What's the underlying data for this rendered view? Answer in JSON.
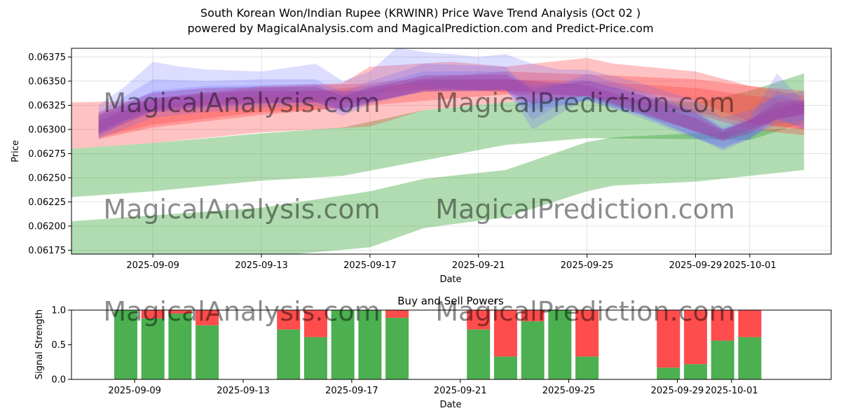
{
  "page": {
    "title_line1": "South Korean Won/Indian Rupee (KRWINR) Price Wave Trend Analysis (Oct 02 )",
    "title_line2": "powered by MagicalAnalysis.com and MagicalPrediction.com and Predict-Price.com",
    "watermark_left": "MagicalAnalysis.com",
    "watermark_right": "MagicalPrediction.com"
  },
  "colors": {
    "green": "#2ca02c",
    "red": "#ff4040",
    "blue": "#6464ff",
    "purple": "#9b3fa3",
    "buy": "#4caf50",
    "sell": "#ff4c4c"
  },
  "chart_data": [
    {
      "type": "area",
      "title": "",
      "xlabel": "Date",
      "ylabel": "Price",
      "xlim": [
        "2025-09-06",
        "2025-10-04"
      ],
      "ylim": [
        0.06171,
        0.06384
      ],
      "x_ticks": [
        "2025-09-09",
        "2025-09-13",
        "2025-09-17",
        "2025-09-21",
        "2025-09-25",
        "2025-09-29",
        "2025-10-01"
      ],
      "y_ticks": [
        0.06175,
        0.062,
        0.06225,
        0.0625,
        0.06275,
        0.063,
        0.06325,
        0.0635,
        0.06375
      ],
      "y_tick_labels": [
        "0.06175",
        "0.06200",
        "0.06225",
        "0.06250",
        "0.06275",
        "0.06300",
        "0.06325",
        "0.06350",
        "0.06375"
      ],
      "grid": true,
      "bands": [
        {
          "name": "green-upper",
          "color": "green",
          "x": [
            "2025-09-06",
            "2025-09-09",
            "2025-09-13",
            "2025-09-16",
            "2025-09-19",
            "2025-09-22",
            "2025-09-25",
            "2025-09-29",
            "2025-10-01",
            "2025-10-03"
          ],
          "upper": [
            0.0628,
            0.06286,
            0.06296,
            0.06302,
            0.0632,
            0.06328,
            0.06335,
            0.06328,
            0.0634,
            0.06358
          ],
          "lower": [
            0.0623,
            0.06236,
            0.06247,
            0.06252,
            0.06268,
            0.06284,
            0.06291,
            0.0629,
            0.06289,
            0.06307
          ]
        },
        {
          "name": "green-lower",
          "color": "green",
          "x": [
            "2025-09-06",
            "2025-09-09",
            "2025-09-13",
            "2025-09-17",
            "2025-09-19",
            "2025-09-22",
            "2025-09-25",
            "2025-09-26",
            "2025-09-29",
            "2025-10-01",
            "2025-10-03"
          ],
          "upper": [
            0.06205,
            0.06211,
            0.06219,
            0.06236,
            0.06249,
            0.06258,
            0.06287,
            0.06292,
            0.06296,
            0.06299,
            0.06302
          ],
          "lower": [
            0.0616,
            0.06165,
            0.06168,
            0.06178,
            0.06198,
            0.06209,
            0.06236,
            0.06242,
            0.06246,
            0.06252,
            0.06258
          ]
        },
        {
          "name": "red-wide",
          "color": "red",
          "x": [
            "2025-09-06",
            "2025-09-09",
            "2025-09-13",
            "2025-09-17",
            "2025-09-19",
            "2025-09-22",
            "2025-09-25",
            "2025-09-29",
            "2025-10-01",
            "2025-10-03"
          ],
          "upper": [
            0.06328,
            0.0633,
            0.06343,
            0.06348,
            0.06353,
            0.0636,
            0.06357,
            0.06352,
            0.06345,
            0.0634
          ],
          "lower": [
            0.0628,
            0.06286,
            0.06297,
            0.06303,
            0.0632,
            0.06328,
            0.06335,
            0.06316,
            0.063,
            0.06294
          ]
        },
        {
          "name": "red-upper",
          "color": "red",
          "x": [
            "2025-09-07",
            "2025-09-09",
            "2025-09-13",
            "2025-09-16",
            "2025-09-17",
            "2025-09-20",
            "2025-09-22",
            "2025-09-25",
            "2025-09-26",
            "2025-09-29",
            "2025-10-01",
            "2025-10-03"
          ],
          "upper": [
            0.06318,
            0.06332,
            0.06345,
            0.06348,
            0.06365,
            0.0637,
            0.06365,
            0.06374,
            0.06368,
            0.0636,
            0.06345,
            0.06335
          ],
          "lower": [
            0.06292,
            0.06305,
            0.06318,
            0.06322,
            0.06338,
            0.06343,
            0.06338,
            0.06348,
            0.06342,
            0.0633,
            0.06308,
            0.063
          ]
        },
        {
          "name": "orange-mid",
          "color": "red",
          "x": [
            "2025-09-07",
            "2025-09-09",
            "2025-09-13",
            "2025-09-17",
            "2025-09-20",
            "2025-09-22",
            "2025-09-25",
            "2025-09-29",
            "2025-10-01",
            "2025-10-03"
          ],
          "upper": [
            0.06315,
            0.06325,
            0.06336,
            0.06345,
            0.0635,
            0.06352,
            0.0635,
            0.06343,
            0.06335,
            0.0633
          ],
          "lower": [
            0.0629,
            0.06302,
            0.06315,
            0.06325,
            0.06332,
            0.06336,
            0.06335,
            0.06318,
            0.06306,
            0.063
          ]
        }
      ],
      "waves": [
        {
          "name": "blue-1",
          "color": "blue",
          "x": [
            "2025-09-07",
            "2025-09-08",
            "2025-09-09",
            "2025-09-10",
            "2025-09-11",
            "2025-09-13",
            "2025-09-15",
            "2025-09-16",
            "2025-09-17",
            "2025-09-18",
            "2025-09-19",
            "2025-09-20",
            "2025-09-21",
            "2025-09-22",
            "2025-09-23",
            "2025-09-24",
            "2025-09-25",
            "2025-09-26",
            "2025-09-27",
            "2025-09-29",
            "2025-09-30",
            "2025-10-01",
            "2025-10-02",
            "2025-10-03"
          ],
          "upper": [
            0.06325,
            0.06345,
            0.0637,
            0.06365,
            0.06362,
            0.0636,
            0.06368,
            0.0635,
            0.0636,
            0.06385,
            0.0638,
            0.06378,
            0.06375,
            0.06378,
            0.06368,
            0.06362,
            0.06362,
            0.06355,
            0.06348,
            0.0633,
            0.06312,
            0.0632,
            0.06335,
            0.0634
          ],
          "lower": [
            0.06295,
            0.0631,
            0.0632,
            0.06325,
            0.0633,
            0.06332,
            0.06334,
            0.06318,
            0.0633,
            0.06348,
            0.06345,
            0.06342,
            0.0634,
            0.06342,
            0.0631,
            0.06325,
            0.0633,
            0.06322,
            0.06315,
            0.06292,
            0.0628,
            0.06292,
            0.06305,
            0.0631
          ]
        },
        {
          "name": "blue-2",
          "color": "blue",
          "x": [
            "2025-09-07",
            "2025-09-08",
            "2025-09-09",
            "2025-09-11",
            "2025-09-13",
            "2025-09-15",
            "2025-09-16",
            "2025-09-17",
            "2025-09-19",
            "2025-09-22",
            "2025-09-23",
            "2025-09-25",
            "2025-09-27",
            "2025-09-29",
            "2025-09-30",
            "2025-10-01",
            "2025-10-02",
            "2025-10-03"
          ],
          "upper": [
            0.06318,
            0.06335,
            0.06352,
            0.0635,
            0.06352,
            0.06352,
            0.06338,
            0.0635,
            0.06368,
            0.06365,
            0.06335,
            0.06358,
            0.0634,
            0.0632,
            0.06302,
            0.06312,
            0.06358,
            0.06328
          ],
          "lower": [
            0.06292,
            0.06308,
            0.06318,
            0.06322,
            0.06326,
            0.06328,
            0.06318,
            0.06328,
            0.06342,
            0.06342,
            0.063,
            0.06332,
            0.06315,
            0.06292,
            0.06278,
            0.0629,
            0.06312,
            0.063
          ]
        },
        {
          "name": "blue-3",
          "color": "blue",
          "x": [
            "2025-09-07",
            "2025-09-09",
            "2025-09-11",
            "2025-09-13",
            "2025-09-15",
            "2025-09-16",
            "2025-09-17",
            "2025-09-19",
            "2025-09-22",
            "2025-09-23",
            "2025-09-25",
            "2025-09-27",
            "2025-09-29",
            "2025-09-30",
            "2025-10-01",
            "2025-10-02",
            "2025-10-03"
          ],
          "upper": [
            0.06312,
            0.0634,
            0.06345,
            0.06346,
            0.06347,
            0.06334,
            0.06345,
            0.0636,
            0.0636,
            0.06345,
            0.06352,
            0.06336,
            0.06315,
            0.063,
            0.06308,
            0.0634,
            0.06325
          ],
          "lower": [
            0.0629,
            0.06312,
            0.06318,
            0.06322,
            0.06324,
            0.06314,
            0.06326,
            0.0634,
            0.0634,
            0.0632,
            0.0633,
            0.06312,
            0.0629,
            0.06282,
            0.0629,
            0.0631,
            0.06302
          ]
        },
        {
          "name": "purple-1",
          "color": "purple",
          "x": [
            "2025-09-07",
            "2025-09-08",
            "2025-09-09",
            "2025-09-11",
            "2025-09-13",
            "2025-09-15",
            "2025-09-16",
            "2025-09-17",
            "2025-09-19",
            "2025-09-22",
            "2025-09-23",
            "2025-09-25",
            "2025-09-27",
            "2025-09-29",
            "2025-09-30",
            "2025-10-01",
            "2025-10-02",
            "2025-10-03"
          ],
          "upper": [
            0.06315,
            0.06328,
            0.06338,
            0.06343,
            0.06344,
            0.06344,
            0.06335,
            0.06343,
            0.06356,
            0.06357,
            0.06342,
            0.0635,
            0.06336,
            0.06318,
            0.063,
            0.0631,
            0.06328,
            0.0633
          ],
          "lower": [
            0.06298,
            0.0631,
            0.0632,
            0.06326,
            0.06328,
            0.06328,
            0.0632,
            0.06328,
            0.0634,
            0.06341,
            0.06326,
            0.06335,
            0.06318,
            0.06298,
            0.06288,
            0.06296,
            0.06312,
            0.06315
          ]
        },
        {
          "name": "purple-2",
          "color": "purple",
          "x": [
            "2025-09-07",
            "2025-09-09",
            "2025-09-11",
            "2025-09-13",
            "2025-09-15",
            "2025-09-17",
            "2025-09-19",
            "2025-09-22",
            "2025-09-25",
            "2025-09-29",
            "2025-09-30",
            "2025-10-02",
            "2025-10-03"
          ],
          "upper": [
            0.06308,
            0.06332,
            0.06338,
            0.0634,
            0.0634,
            0.0634,
            0.06352,
            0.06352,
            0.06346,
            0.06312,
            0.06298,
            0.06322,
            0.06328
          ],
          "lower": [
            0.06295,
            0.06318,
            0.06324,
            0.06327,
            0.06328,
            0.06328,
            0.06339,
            0.0634,
            0.06334,
            0.06298,
            0.0629,
            0.0631,
            0.06316
          ]
        }
      ]
    },
    {
      "type": "bar",
      "title": "Buy and Sell Powers",
      "xlabel": "Date",
      "ylabel": "Signal Strength",
      "ylim": [
        0,
        1
      ],
      "y_ticks": [
        0.0,
        0.5,
        1.0
      ],
      "y_tick_labels": [
        "0.0",
        "0.5",
        "1.0"
      ],
      "x_ticks": [
        "2025-09-09",
        "2025-09-13",
        "2025-09-17",
        "2025-09-21",
        "2025-09-25",
        "2025-09-29",
        "2025-10-01"
      ],
      "categories": [
        "2025-09-08",
        "2025-09-09",
        "2025-09-10",
        "2025-09-11",
        "2025-09-14",
        "2025-09-15",
        "2025-09-16",
        "2025-09-17",
        "2025-09-18",
        "2025-09-21",
        "2025-09-22",
        "2025-09-23",
        "2025-09-24",
        "2025-09-25",
        "2025-09-28",
        "2025-09-29",
        "2025-09-30",
        "2025-10-01"
      ],
      "series": [
        {
          "name": "Buy",
          "color": "buy",
          "values": [
            1.0,
            0.88,
            0.95,
            0.78,
            0.72,
            0.61,
            1.0,
            1.0,
            0.89,
            0.72,
            0.33,
            0.84,
            1.0,
            0.33,
            0.17,
            0.22,
            0.56,
            0.61
          ]
        },
        {
          "name": "Sell",
          "color": "sell",
          "values": [
            0.0,
            0.12,
            0.05,
            0.22,
            0.28,
            0.39,
            0.0,
            0.0,
            0.11,
            0.28,
            0.67,
            0.16,
            0.0,
            0.67,
            0.83,
            0.78,
            0.44,
            0.39
          ]
        }
      ]
    }
  ]
}
